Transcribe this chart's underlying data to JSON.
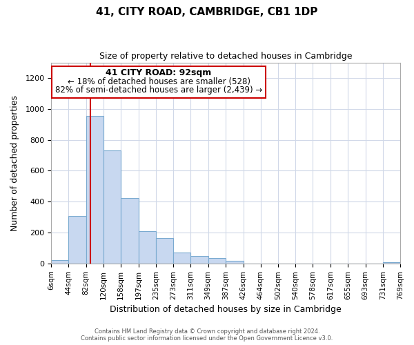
{
  "title": "41, CITY ROAD, CAMBRIDGE, CB1 1DP",
  "subtitle": "Size of property relative to detached houses in Cambridge",
  "xlabel": "Distribution of detached houses by size in Cambridge",
  "ylabel": "Number of detached properties",
  "bar_color": "#c8d8f0",
  "bar_edge_color": "#7aaad0",
  "marker_line_color": "#cc0000",
  "marker_value": 92,
  "bin_edges": [
    6,
    44,
    82,
    120,
    158,
    197,
    235,
    273,
    311,
    349,
    387,
    426,
    464,
    502,
    540,
    578,
    617,
    655,
    693,
    731,
    769
  ],
  "bin_labels": [
    "6sqm",
    "44sqm",
    "82sqm",
    "120sqm",
    "158sqm",
    "197sqm",
    "235sqm",
    "273sqm",
    "311sqm",
    "349sqm",
    "387sqm",
    "426sqm",
    "464sqm",
    "502sqm",
    "540sqm",
    "578sqm",
    "617sqm",
    "655sqm",
    "693sqm",
    "731sqm",
    "769sqm"
  ],
  "bar_heights": [
    20,
    305,
    955,
    730,
    425,
    210,
    163,
    70,
    47,
    33,
    18,
    0,
    0,
    0,
    0,
    0,
    0,
    0,
    0,
    8
  ],
  "ylim": [
    0,
    1300
  ],
  "yticks": [
    0,
    200,
    400,
    600,
    800,
    1000,
    1200
  ],
  "annotation_title": "41 CITY ROAD: 92sqm",
  "annotation_line1": "← 18% of detached houses are smaller (528)",
  "annotation_line2": "82% of semi-detached houses are larger (2,439) →",
  "footer_line1": "Contains HM Land Registry data © Crown copyright and database right 2024.",
  "footer_line2": "Contains public sector information licensed under the Open Government Licence v3.0.",
  "background_color": "#ffffff",
  "figsize": [
    6.0,
    5.0
  ],
  "dpi": 100
}
